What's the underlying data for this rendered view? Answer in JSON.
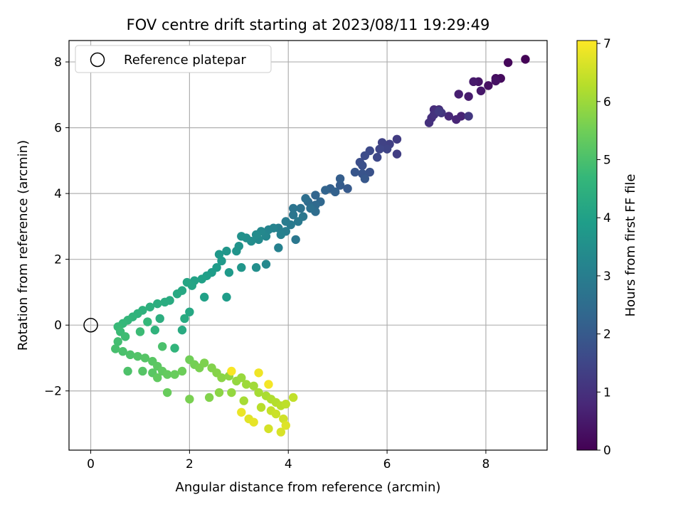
{
  "chart_data": {
    "type": "scatter",
    "title": "FOV centre drift starting at 2023/08/11 19:29:49",
    "xlabel": "Angular distance from reference (arcmin)",
    "ylabel": "Rotation from reference (arcmin)",
    "xlim": [
      -0.44,
      9.24
    ],
    "ylim": [
      -3.8,
      8.65
    ],
    "xticks": [
      0,
      2,
      4,
      6,
      8
    ],
    "yticks": [
      -2,
      0,
      2,
      4,
      6,
      8
    ],
    "xtick_labels": [
      "0",
      "2",
      "4",
      "6",
      "8"
    ],
    "ytick_labels": [
      "−2",
      "0",
      "2",
      "4",
      "6",
      "8"
    ],
    "grid": true,
    "legend": {
      "position": "upper-left",
      "entries": [
        "Reference platepar"
      ]
    },
    "reference_point": {
      "x": 0,
      "y": 0
    },
    "colorbar": {
      "label": "Hours from first FF file",
      "range": [
        0,
        7.05
      ],
      "ticks": [
        0,
        1,
        2,
        3,
        4,
        5,
        6,
        7
      ],
      "colormap": "viridis"
    },
    "colormap_stops": [
      "#440154",
      "#482878",
      "#3e4989",
      "#31688e",
      "#26828e",
      "#1f9e89",
      "#35b779",
      "#6ece58",
      "#b5de2b",
      "#fde725"
    ],
    "points": [
      [
        8.8,
        8.08,
        0.05
      ],
      [
        8.45,
        7.98,
        0.12
      ],
      [
        8.3,
        7.5,
        0.2
      ],
      [
        8.2,
        7.5,
        0.25
      ],
      [
        8.05,
        7.28,
        0.3
      ],
      [
        8.2,
        7.42,
        0.35
      ],
      [
        7.85,
        7.4,
        0.4
      ],
      [
        7.9,
        7.12,
        0.45
      ],
      [
        7.75,
        7.4,
        0.5
      ],
      [
        7.65,
        6.95,
        0.55
      ],
      [
        7.45,
        7.02,
        0.6
      ],
      [
        7.5,
        6.35,
        0.7
      ],
      [
        7.4,
        6.25,
        0.75
      ],
      [
        7.25,
        6.35,
        0.8
      ],
      [
        7.05,
        6.55,
        0.85
      ],
      [
        6.95,
        6.55,
        0.9
      ],
      [
        6.9,
        6.3,
        0.95
      ],
      [
        6.85,
        6.15,
        1.0
      ],
      [
        6.95,
        6.4,
        1.05
      ],
      [
        7.1,
        6.45,
        1.1
      ],
      [
        7.65,
        6.35,
        1.15
      ],
      [
        7.05,
        6.5,
        1.2
      ],
      [
        6.2,
        5.65,
        1.25
      ],
      [
        6.2,
        5.2,
        1.3
      ],
      [
        6.05,
        5.5,
        1.35
      ],
      [
        5.9,
        5.55,
        1.4
      ],
      [
        6.0,
        5.35,
        1.45
      ],
      [
        5.85,
        5.35,
        1.5
      ],
      [
        5.8,
        5.1,
        1.55
      ],
      [
        5.65,
        5.3,
        1.6
      ],
      [
        5.55,
        5.15,
        1.65
      ],
      [
        5.45,
        4.95,
        1.7
      ],
      [
        5.5,
        4.85,
        1.75
      ],
      [
        5.65,
        4.65,
        1.8
      ],
      [
        5.5,
        4.6,
        1.85
      ],
      [
        5.35,
        4.65,
        1.9
      ],
      [
        5.55,
        4.45,
        1.95
      ],
      [
        5.2,
        4.15,
        2.0
      ],
      [
        5.05,
        4.25,
        2.05
      ],
      [
        5.05,
        4.45,
        2.1
      ],
      [
        4.85,
        4.15,
        2.15
      ],
      [
        4.95,
        4.05,
        2.2
      ],
      [
        4.75,
        4.1,
        2.25
      ],
      [
        4.55,
        3.95,
        2.3
      ],
      [
        4.65,
        3.75,
        2.35
      ],
      [
        4.55,
        3.65,
        2.4
      ],
      [
        4.4,
        3.75,
        2.45
      ],
      [
        4.55,
        3.45,
        2.5
      ],
      [
        4.35,
        3.85,
        2.55
      ],
      [
        4.45,
        3.55,
        2.6
      ],
      [
        4.25,
        3.55,
        2.65
      ],
      [
        4.1,
        3.55,
        2.7
      ],
      [
        4.1,
        3.35,
        2.75
      ],
      [
        4.3,
        3.3,
        2.8
      ],
      [
        4.2,
        3.15,
        2.85
      ],
      [
        4.05,
        3.05,
        2.9
      ],
      [
        3.95,
        3.15,
        2.95
      ],
      [
        3.95,
        2.85,
        3.0
      ],
      [
        3.8,
        2.95,
        3.05
      ],
      [
        3.85,
        2.75,
        3.1
      ],
      [
        3.7,
        2.95,
        3.15
      ],
      [
        3.6,
        2.9,
        3.2
      ],
      [
        3.55,
        2.7,
        3.25
      ],
      [
        3.45,
        2.85,
        3.3
      ],
      [
        3.4,
        2.6,
        3.35
      ],
      [
        3.35,
        2.75,
        3.4
      ],
      [
        3.25,
        2.55,
        3.45
      ],
      [
        3.15,
        2.65,
        3.5
      ],
      [
        3.05,
        2.7,
        3.55
      ],
      [
        3.0,
        2.4,
        3.6
      ],
      [
        2.95,
        2.25,
        3.65
      ],
      [
        2.75,
        2.25,
        3.7
      ],
      [
        2.6,
        2.15,
        3.75
      ],
      [
        2.65,
        1.95,
        3.8
      ],
      [
        2.55,
        1.75,
        3.85
      ],
      [
        2.45,
        1.6,
        3.9
      ],
      [
        2.35,
        1.5,
        3.95
      ],
      [
        2.25,
        1.4,
        4.0
      ],
      [
        2.1,
        1.35,
        4.05
      ],
      [
        2.05,
        1.2,
        4.1
      ],
      [
        1.95,
        1.3,
        4.15
      ],
      [
        1.85,
        1.05,
        4.2
      ],
      [
        1.75,
        0.95,
        4.25
      ],
      [
        1.6,
        0.75,
        4.3
      ],
      [
        1.5,
        0.7,
        4.35
      ],
      [
        1.35,
        0.65,
        4.4
      ],
      [
        1.2,
        0.55,
        4.45
      ],
      [
        1.05,
        0.45,
        4.5
      ],
      [
        0.95,
        0.35,
        4.55
      ],
      [
        0.85,
        0.25,
        4.6
      ],
      [
        0.75,
        0.15,
        4.65
      ],
      [
        0.65,
        0.05,
        4.7
      ],
      [
        0.55,
        -0.05,
        4.75
      ],
      [
        0.6,
        -0.2,
        4.8
      ],
      [
        0.7,
        -0.35,
        4.85
      ],
      [
        0.55,
        -0.5,
        4.9
      ],
      [
        0.5,
        -0.72,
        4.95
      ],
      [
        0.65,
        -0.8,
        5.0
      ],
      [
        0.8,
        -0.9,
        5.05
      ],
      [
        0.95,
        -0.95,
        5.1
      ],
      [
        1.1,
        -1.0,
        5.15
      ],
      [
        1.25,
        -1.1,
        5.2
      ],
      [
        1.35,
        -1.25,
        5.25
      ],
      [
        1.45,
        -1.4,
        5.3
      ],
      [
        1.55,
        -1.5,
        5.35
      ],
      [
        1.7,
        -1.5,
        5.4
      ],
      [
        1.85,
        -1.4,
        5.45
      ],
      [
        2.0,
        -1.05,
        5.5
      ],
      [
        2.1,
        -1.2,
        5.55
      ],
      [
        2.2,
        -1.3,
        5.6
      ],
      [
        2.3,
        -1.15,
        5.65
      ],
      [
        2.45,
        -1.3,
        5.7
      ],
      [
        2.55,
        -1.45,
        5.75
      ],
      [
        2.65,
        -1.6,
        5.8
      ],
      [
        2.8,
        -1.55,
        5.85
      ],
      [
        2.95,
        -1.7,
        5.9
      ],
      [
        3.05,
        -1.6,
        5.95
      ],
      [
        3.15,
        -1.8,
        6.0
      ],
      [
        3.3,
        -1.85,
        6.05
      ],
      [
        3.4,
        -2.05,
        6.1
      ],
      [
        3.55,
        -2.15,
        6.15
      ],
      [
        3.65,
        -2.25,
        6.2
      ],
      [
        3.75,
        -2.35,
        6.25
      ],
      [
        3.85,
        -2.45,
        6.3
      ],
      [
        3.95,
        -2.4,
        6.35
      ],
      [
        4.1,
        -2.2,
        6.4
      ],
      [
        3.65,
        -2.6,
        6.45
      ],
      [
        3.75,
        -2.7,
        6.5
      ],
      [
        3.9,
        -2.85,
        6.55
      ],
      [
        3.6,
        -3.15,
        6.6
      ],
      [
        3.85,
        -3.25,
        6.65
      ],
      [
        3.95,
        -3.05,
        6.7
      ],
      [
        3.2,
        -2.85,
        6.75
      ],
      [
        3.3,
        -2.95,
        6.8
      ],
      [
        3.05,
        -2.65,
        6.85
      ],
      [
        3.4,
        -1.45,
        6.9
      ],
      [
        3.6,
        -1.8,
        6.95
      ],
      [
        2.85,
        -1.4,
        7.0
      ],
      [
        1.45,
        -0.65,
        5.0
      ],
      [
        1.7,
        -0.7,
        4.6
      ],
      [
        1.3,
        -0.15,
        4.55
      ],
      [
        1.0,
        -0.2,
        4.8
      ],
      [
        1.15,
        0.1,
        4.7
      ],
      [
        1.9,
        0.2,
        4.3
      ],
      [
        2.3,
        0.85,
        4.0
      ],
      [
        1.4,
        0.2,
        4.4
      ],
      [
        2.0,
        0.4,
        4.2
      ],
      [
        2.75,
        0.85,
        3.9
      ],
      [
        3.35,
        1.75,
        3.5
      ],
      [
        3.55,
        1.85,
        3.3
      ],
      [
        3.8,
        2.35,
        3.1
      ],
      [
        4.15,
        2.6,
        2.8
      ],
      [
        3.05,
        1.75,
        3.7
      ],
      [
        2.8,
        1.6,
        3.8
      ],
      [
        1.85,
        -0.15,
        4.3
      ],
      [
        0.75,
        -1.4,
        5.05
      ],
      [
        1.05,
        -1.4,
        5.15
      ],
      [
        1.25,
        -1.45,
        5.2
      ],
      [
        1.35,
        -1.6,
        5.3
      ],
      [
        1.55,
        -2.05,
        5.4
      ],
      [
        2.0,
        -2.25,
        5.6
      ],
      [
        2.4,
        -2.2,
        5.7
      ],
      [
        2.6,
        -2.05,
        5.8
      ],
      [
        2.85,
        -2.05,
        5.9
      ],
      [
        3.1,
        -2.3,
        6.1
      ],
      [
        3.45,
        -2.5,
        6.3
      ]
    ]
  }
}
